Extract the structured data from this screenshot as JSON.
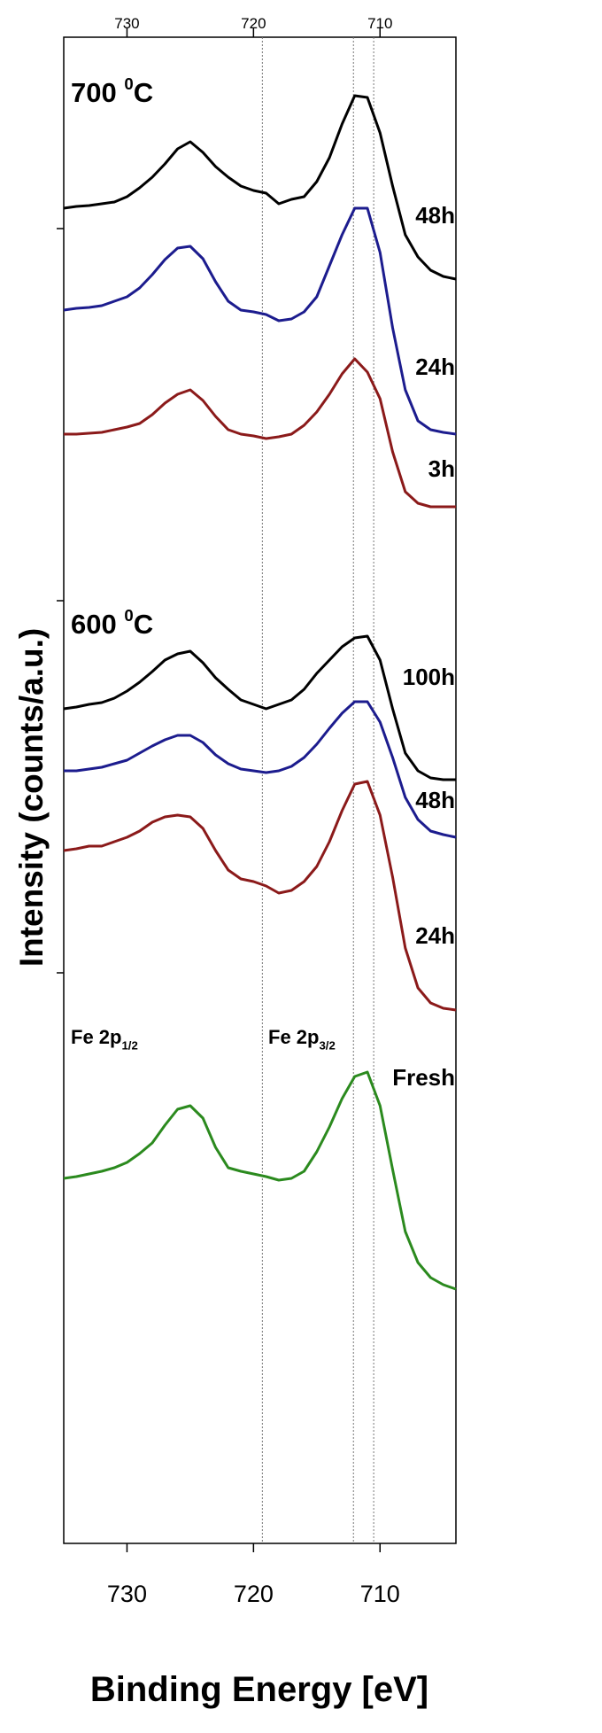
{
  "chart_data": {
    "type": "line",
    "xlabel": "Binding Energy [eV]",
    "ylabel": "Intensity (counts/a.u.)",
    "x": [
      735,
      734,
      733,
      732,
      731,
      730,
      729,
      728,
      727,
      726,
      725,
      724,
      723,
      722,
      721,
      720,
      719,
      718,
      717,
      716,
      715,
      714,
      713,
      712,
      711,
      710,
      709,
      708,
      707,
      706,
      705,
      704
    ],
    "xlim": [
      735,
      704
    ],
    "xticks": [
      730,
      720,
      710
    ],
    "ylim": [
      0,
      1700
    ],
    "yticks": [
      644,
      1064,
      1484
    ],
    "vlines": [
      719.3,
      712.1,
      710.5
    ],
    "series": [
      {
        "name": "48h",
        "color": "#000000",
        "values": [
          1507,
          1509,
          1510,
          1512,
          1514,
          1520,
          1530,
          1542,
          1557,
          1574,
          1582,
          1570,
          1554,
          1542,
          1532,
          1527,
          1524,
          1512,
          1517,
          1520,
          1537,
          1564,
          1602,
          1634,
          1632,
          1592,
          1532,
          1477,
          1452,
          1437,
          1430,
          1427
        ]
      },
      {
        "name": "24h",
        "color": "#1c1c8e",
        "values": [
          1392,
          1394,
          1395,
          1397,
          1402,
          1407,
          1417,
          1432,
          1449,
          1462,
          1464,
          1450,
          1424,
          1402,
          1392,
          1390,
          1387,
          1380,
          1382,
          1390,
          1407,
          1442,
          1477,
          1507,
          1507,
          1457,
          1372,
          1302,
          1267,
          1257,
          1254,
          1252
        ]
      },
      {
        "name": "3h",
        "color": "#8b1a1a",
        "values": [
          1252,
          1252,
          1253,
          1254,
          1257,
          1260,
          1264,
          1274,
          1287,
          1297,
          1302,
          1290,
          1272,
          1257,
          1252,
          1250,
          1247,
          1249,
          1252,
          1262,
          1277,
          1297,
          1320,
          1337,
          1322,
          1292,
          1232,
          1187,
          1174,
          1170,
          1170,
          1170
        ]
      },
      {
        "name": "100h",
        "color": "#000000",
        "values": [
          942,
          944,
          947,
          949,
          954,
          962,
          972,
          984,
          997,
          1004,
          1007,
          994,
          977,
          964,
          952,
          947,
          942,
          947,
          952,
          964,
          982,
          997,
          1012,
          1022,
          1024,
          997,
          942,
          892,
          872,
          864,
          862,
          862
        ]
      },
      {
        "name": "48h",
        "color": "#1c1c8e",
        "values": [
          872,
          872,
          874,
          876,
          880,
          884,
          892,
          900,
          907,
          912,
          912,
          904,
          890,
          880,
          874,
          872,
          870,
          872,
          877,
          887,
          902,
          920,
          937,
          950,
          950,
          927,
          887,
          842,
          817,
          804,
          800,
          797
        ]
      },
      {
        "name": "24h",
        "color": "#8b1a1a",
        "values": [
          782,
          784,
          787,
          787,
          792,
          797,
          804,
          814,
          820,
          822,
          820,
          807,
          782,
          760,
          750,
          747,
          742,
          734,
          737,
          747,
          764,
          792,
          827,
          857,
          860,
          822,
          752,
          672,
          627,
          610,
          604,
          602
        ]
      },
      {
        "name": "Fresh",
        "color": "#2b8a1e",
        "values": [
          412,
          414,
          417,
          420,
          424,
          430,
          440,
          452,
          472,
          490,
          494,
          480,
          447,
          424,
          420,
          417,
          414,
          410,
          412,
          420,
          442,
          470,
          502,
          527,
          532,
          494,
          422,
          352,
          317,
          300,
          292,
          287
        ]
      }
    ],
    "annotations": [
      {
        "text": "700 ",
        "sup": "0",
        "tail": "C"
      },
      {
        "text": "600 ",
        "sup": "0",
        "tail": "C"
      },
      {
        "text": "Fe 2p",
        "sub": "1/2"
      },
      {
        "text": "Fe 2p",
        "sub": "3/2"
      }
    ]
  }
}
